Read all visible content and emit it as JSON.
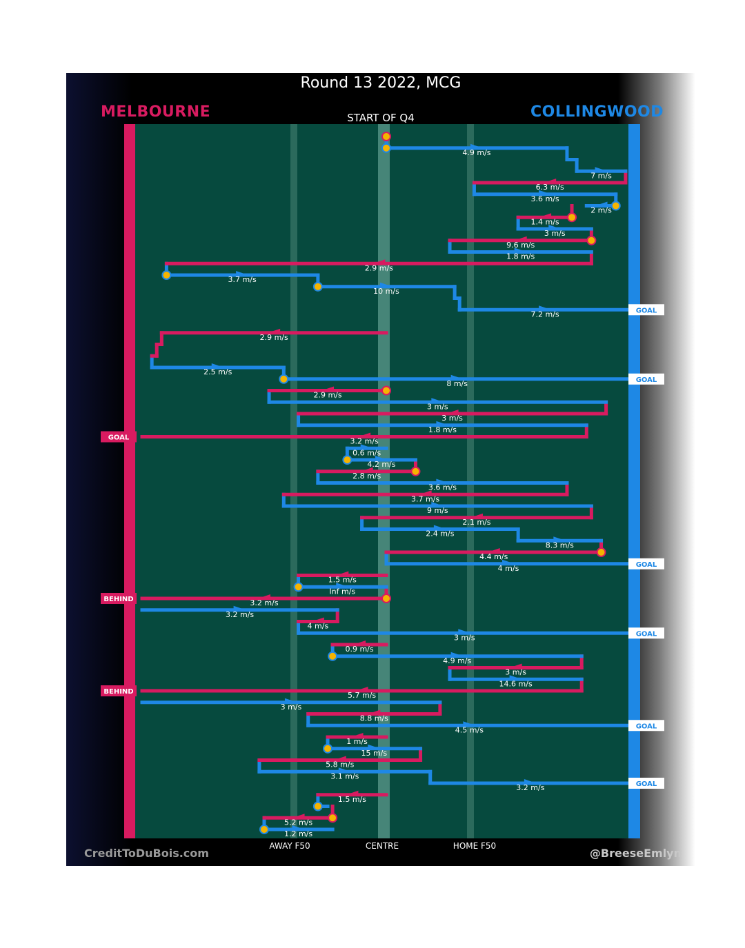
{
  "title": "Round 13 2022, MCG",
  "teams": {
    "home": "MELBOURNE",
    "away": "COLLINGWOOD",
    "home_color": "#d81b60",
    "away_color": "#1e88e5"
  },
  "start_label": "START OF Q4",
  "footer": {
    "credit": "CreditToDuBois.com",
    "handle": "@BreeseEmlyn"
  },
  "axis_labels": {
    "away_f50": "AWAY F50",
    "centre": "CENTRE",
    "home_f50": "HOME F50"
  },
  "colors": {
    "field": "#064a3e",
    "field_stripe": "#2b6a5c",
    "centre_stripe": "#5c9a8c",
    "ball": "#f5b400"
  },
  "chart_data": {
    "type": "line",
    "title": "Round 13 2022, MCG",
    "description_axes": {
      "x_unit": "field position (0 = Melbourne goal, 100 = Collingwood goal)",
      "y_unit": "chain step index (time order, top to bottom)"
    },
    "xlim": [
      0,
      100
    ],
    "ylim": [
      0,
      61
    ],
    "segments": [
      {
        "team": "home",
        "x0": 50,
        "x1": 50,
        "y": 0.0,
        "speed": ""
      },
      {
        "team": "away",
        "x0": 50,
        "x1": 87,
        "y": 1.0,
        "speed": "4.9 m/s"
      },
      {
        "team": "away",
        "x0": 87,
        "x1": 89,
        "y": 2.0,
        "speed": ""
      },
      {
        "team": "away",
        "x0": 89,
        "x1": 99,
        "y": 3.0,
        "speed": "7 m/s"
      },
      {
        "team": "home",
        "x0": 99,
        "x1": 68,
        "y": 4.0,
        "speed": "6.3 m/s"
      },
      {
        "team": "away",
        "x0": 68,
        "x1": 97,
        "y": 5.0,
        "speed": "3.6 m/s"
      },
      {
        "team": "away",
        "x0": 97,
        "x1": 91,
        "y": 6.0,
        "speed": "2 m/s"
      },
      {
        "team": "home",
        "x0": 88,
        "x1": 77,
        "y": 7.0,
        "speed": "1.4 m/s"
      },
      {
        "team": "away",
        "x0": 77,
        "x1": 92,
        "y": 8.0,
        "speed": "3 m/s"
      },
      {
        "team": "home",
        "x0": 92,
        "x1": 63,
        "y": 9.0,
        "speed": "9.6 m/s"
      },
      {
        "team": "away",
        "x0": 63,
        "x1": 92,
        "y": 10.0,
        "speed": "1.8 m/s"
      },
      {
        "team": "home",
        "x0": 92,
        "x1": 5,
        "y": 11.0,
        "speed": "2.9 m/s"
      },
      {
        "team": "away",
        "x0": 5,
        "x1": 36,
        "y": 12.0,
        "speed": "3.7 m/s"
      },
      {
        "team": "away",
        "x0": 36,
        "x1": 64,
        "y": 13.0,
        "speed": "10 m/s"
      },
      {
        "team": "away",
        "x0": 64,
        "x1": 65,
        "y": 14.0,
        "speed": ""
      },
      {
        "team": "away",
        "x0": 65,
        "x1": 100,
        "y": 15.0,
        "speed": "7.2 m/s",
        "outcome": "GOAL"
      },
      {
        "team": "home",
        "x0": 50,
        "x1": 4,
        "y": 17.0,
        "speed": "2.9 m/s"
      },
      {
        "team": "home",
        "x0": 4,
        "x1": 3,
        "y": 18.0,
        "speed": ""
      },
      {
        "team": "home",
        "x0": 3,
        "x1": 2,
        "y": 19.0,
        "speed": ""
      },
      {
        "team": "away",
        "x0": 2,
        "x1": 29,
        "y": 20.0,
        "speed": "2.5 m/s"
      },
      {
        "team": "away",
        "x0": 29,
        "x1": 100,
        "y": 21.0,
        "speed": "8 m/s",
        "outcome": "GOAL"
      },
      {
        "team": "home",
        "x0": 50,
        "x1": 26,
        "y": 22.0,
        "speed": "2.9 m/s"
      },
      {
        "team": "away",
        "x0": 26,
        "x1": 95,
        "y": 23.0,
        "speed": "3 m/s"
      },
      {
        "team": "home",
        "x0": 95,
        "x1": 32,
        "y": 24.0,
        "speed": "3 m/s"
      },
      {
        "team": "away",
        "x0": 32,
        "x1": 91,
        "y": 25.0,
        "speed": "1.8 m/s"
      },
      {
        "team": "home",
        "x0": 91,
        "x1": 0,
        "y": 26.0,
        "speed": "3.2 m/s",
        "outcome": "GOAL"
      },
      {
        "team": "away",
        "x0": 42,
        "x1": 50,
        "y": 27.0,
        "speed": "0.6 m/s"
      },
      {
        "team": "away",
        "x0": 42,
        "x1": 56,
        "y": 28.0,
        "speed": "4.2 m/s"
      },
      {
        "team": "home",
        "x0": 56,
        "x1": 36,
        "y": 29.0,
        "speed": "2.8 m/s"
      },
      {
        "team": "away",
        "x0": 36,
        "x1": 87,
        "y": 30.0,
        "speed": "3.6 m/s"
      },
      {
        "team": "home",
        "x0": 87,
        "x1": 29,
        "y": 31.0,
        "speed": "3.7 m/s"
      },
      {
        "team": "away",
        "x0": 29,
        "x1": 92,
        "y": 32.0,
        "speed": "9 m/s"
      },
      {
        "team": "home",
        "x0": 92,
        "x1": 45,
        "y": 33.0,
        "speed": "2.1 m/s"
      },
      {
        "team": "away",
        "x0": 45,
        "x1": 77,
        "y": 34.0,
        "speed": "2.4 m/s"
      },
      {
        "team": "away",
        "x0": 77,
        "x1": 94,
        "y": 35.0,
        "speed": "8.3 m/s"
      },
      {
        "team": "home",
        "x0": 94,
        "x1": 50,
        "y": 36.0,
        "speed": "4.4 m/s"
      },
      {
        "team": "away",
        "x0": 50,
        "x1": 100,
        "y": 37.0,
        "speed": "4 m/s",
        "outcome": "GOAL"
      },
      {
        "team": "home",
        "x0": 50,
        "x1": 32,
        "y": 38.0,
        "speed": "1.5 m/s"
      },
      {
        "team": "away",
        "x0": 32,
        "x1": 50,
        "y": 39.0,
        "speed": "Inf m/s"
      },
      {
        "team": "home",
        "x0": 50,
        "x1": 0,
        "y": 40.0,
        "speed": "3.2 m/s",
        "outcome": "BEHIND"
      },
      {
        "team": "away",
        "x0": 0,
        "x1": 40,
        "y": 41.0,
        "speed": "3.2 m/s"
      },
      {
        "team": "home",
        "x0": 40,
        "x1": 32,
        "y": 42.0,
        "speed": "4 m/s"
      },
      {
        "team": "away",
        "x0": 32,
        "x1": 100,
        "y": 43.0,
        "speed": "3 m/s",
        "outcome": "GOAL"
      },
      {
        "team": "home",
        "x0": 50,
        "x1": 39,
        "y": 44.0,
        "speed": "0.9 m/s"
      },
      {
        "team": "away",
        "x0": 39,
        "x1": 90,
        "y": 45.0,
        "speed": "4.9 m/s"
      },
      {
        "team": "home",
        "x0": 90,
        "x1": 63,
        "y": 46.0,
        "speed": "3 m/s"
      },
      {
        "team": "away",
        "x0": 63,
        "x1": 90,
        "y": 47.0,
        "speed": "14.6 m/s"
      },
      {
        "team": "home",
        "x0": 90,
        "x1": 0,
        "y": 48.0,
        "speed": "5.7 m/s",
        "outcome": "BEHIND"
      },
      {
        "team": "away",
        "x0": 0,
        "x1": 61,
        "y": 49.0,
        "speed": "3 m/s"
      },
      {
        "team": "home",
        "x0": 61,
        "x1": 34,
        "y": 50.0,
        "speed": "8.8 m/s"
      },
      {
        "team": "away",
        "x0": 34,
        "x1": 100,
        "y": 51.0,
        "speed": "4.5 m/s",
        "outcome": "GOAL"
      },
      {
        "team": "home",
        "x0": 50,
        "x1": 38,
        "y": 52.0,
        "speed": "1 m/s"
      },
      {
        "team": "away",
        "x0": 38,
        "x1": 57,
        "y": 53.0,
        "speed": "15 m/s"
      },
      {
        "team": "home",
        "x0": 57,
        "x1": 24,
        "y": 54.0,
        "speed": "5.8 m/s"
      },
      {
        "team": "away",
        "x0": 24,
        "x1": 59,
        "y": 55.0,
        "speed": "3.1 m/s"
      },
      {
        "team": "away",
        "x0": 59,
        "x1": 100,
        "y": 56.0,
        "speed": "3.2 m/s",
        "outcome": "GOAL"
      },
      {
        "team": "home",
        "x0": 50,
        "x1": 36,
        "y": 57.0,
        "speed": "1.5 m/s"
      },
      {
        "team": "away",
        "x0": 36,
        "x1": 38,
        "y": 58.0,
        "speed": ""
      },
      {
        "team": "home",
        "x0": 39,
        "x1": 25,
        "y": 59.0,
        "speed": "5.2 m/s"
      },
      {
        "team": "away",
        "x0": 25,
        "x1": 39,
        "y": 60.0,
        "speed": "1.2 m/s"
      }
    ],
    "possession_changes": [
      0,
      1,
      6,
      7,
      9,
      12,
      13,
      20,
      21,
      27,
      28,
      35,
      38,
      39,
      44,
      52,
      57,
      58,
      59
    ]
  }
}
